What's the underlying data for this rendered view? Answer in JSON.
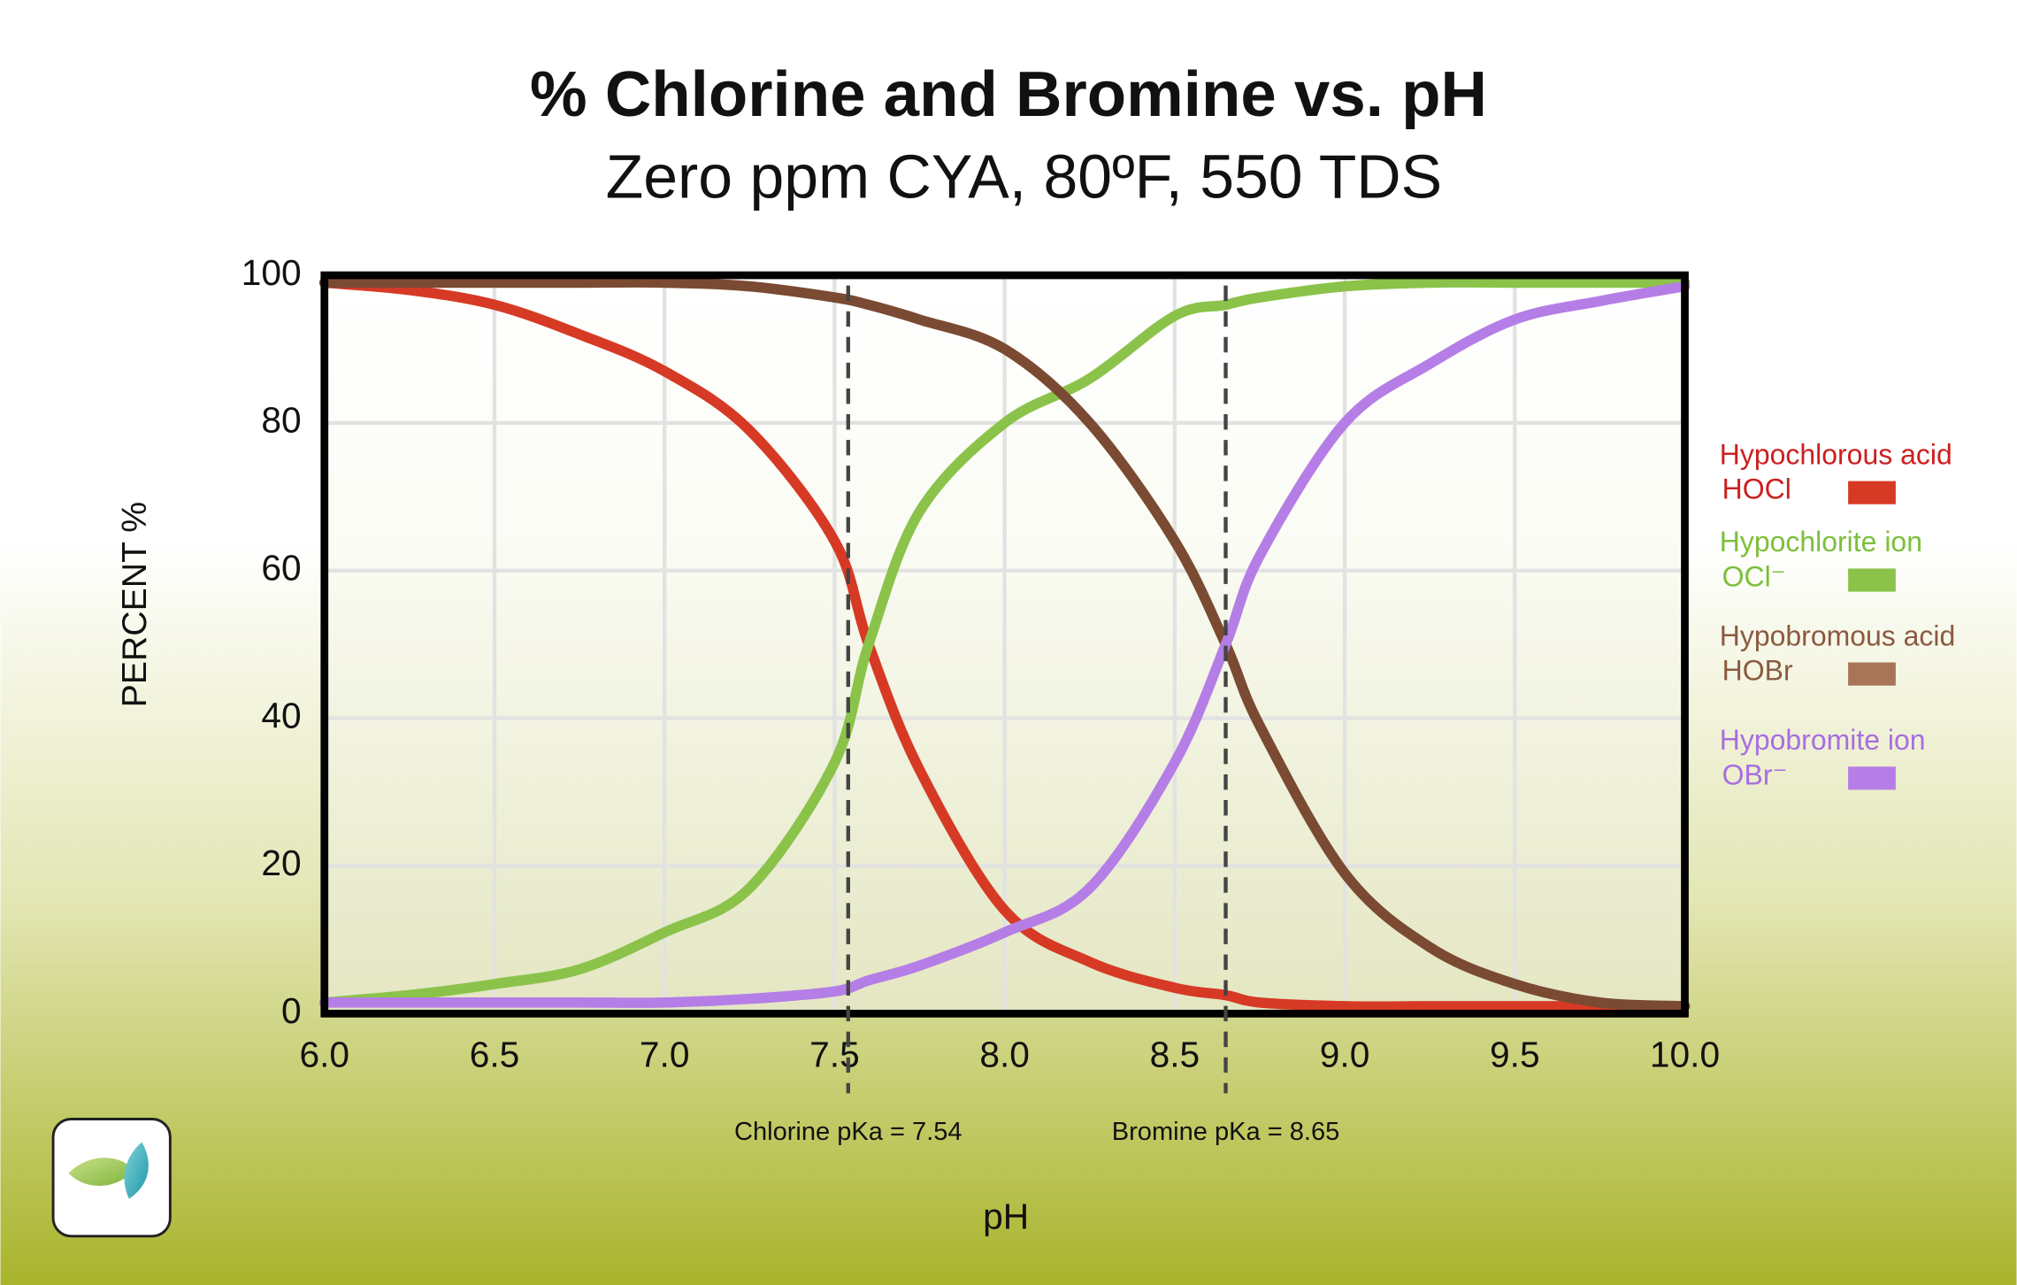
{
  "chart_data": {
    "type": "line",
    "title": "% Chlorine and Bromine vs. pH",
    "subtitle": "Zero ppm CYA, 80ºF, 550 TDS",
    "x_label": "pH",
    "y_label": "PERCENT %",
    "x": [
      6.0,
      6.25,
      6.5,
      6.75,
      7.0,
      7.25,
      7.5,
      7.6,
      7.75,
      8.0,
      8.25,
      8.5,
      8.65,
      8.75,
      9.0,
      9.25,
      9.5,
      9.75,
      10.0
    ],
    "series": [
      {
        "name": "Hypochlorous acid",
        "formula": "HOCl",
        "color": "#d63a25",
        "text_color": "#cc1f1f",
        "values": [
          99,
          98,
          96,
          92,
          87,
          79,
          64,
          50,
          33,
          14,
          7,
          3.5,
          2.5,
          1.5,
          1,
          1,
          1,
          1,
          1
        ]
      },
      {
        "name": "Hypochlorite ion",
        "formula": "OCl⁻",
        "color": "#8bc34a",
        "text_color": "#7cbf3a",
        "values": [
          1.5,
          2.5,
          4,
          6,
          11,
          17,
          34,
          50,
          68,
          80,
          86,
          94.5,
          96,
          97,
          98.5,
          99,
          99,
          99,
          99
        ]
      },
      {
        "name": "Hypobromous acid",
        "formula": "HOBr",
        "color": "#7a4a32",
        "swatch": "#a87558",
        "text_color": "#8a5a40",
        "values": [
          99,
          99,
          99,
          99,
          99,
          98.5,
          97,
          96,
          94,
          90,
          80,
          64,
          50,
          39,
          19,
          9,
          4,
          1.5,
          1
        ]
      },
      {
        "name": "Hypobromite ion",
        "formula": "OBr⁻",
        "color": "#b57ee6",
        "text_color": "#a86ee0",
        "values": [
          1.5,
          1.5,
          1.5,
          1.5,
          1.5,
          2,
          3,
          4.5,
          6.5,
          11,
          17,
          34,
          50,
          62,
          80,
          88,
          94,
          96.5,
          98.5
        ]
      }
    ],
    "xlim": [
      6,
      10
    ],
    "ylim": [
      0,
      100
    ],
    "xticks": [
      {
        "value": 6,
        "label": "6.0"
      },
      6.5,
      {
        "value": 7,
        "label": "7.0"
      },
      7.5,
      {
        "value": 8,
        "label": "8.0"
      },
      8.5,
      {
        "value": 9,
        "label": "9.0"
      },
      9.5,
      {
        "value": 10,
        "label": "10.0"
      }
    ],
    "yticks": [
      0,
      20,
      40,
      60,
      80,
      100
    ],
    "grid": true,
    "legend": "right",
    "reference_lines": [
      {
        "value": 7.54,
        "label": "Chlorine pKa = 7.54"
      },
      {
        "value": 8.65,
        "label": "Bromine pKa = 8.65"
      }
    ]
  }
}
